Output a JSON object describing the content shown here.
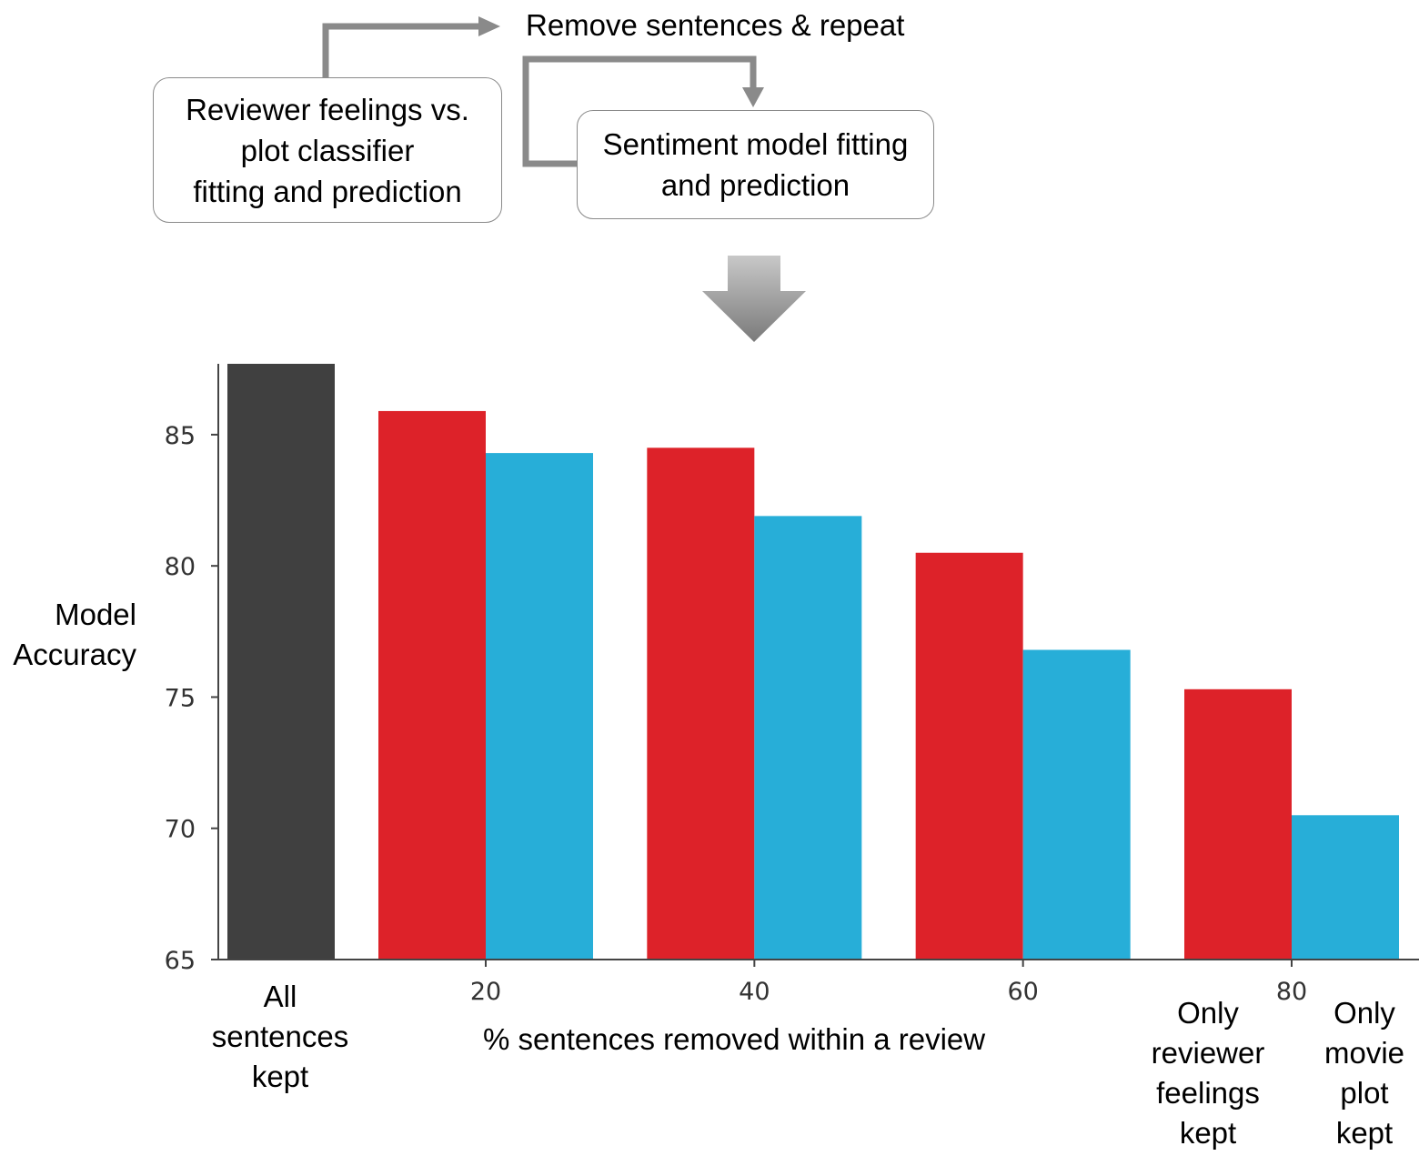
{
  "flow": {
    "classifier_box": [
      "Reviewer feelings vs.",
      "plot classifier",
      "fitting and prediction"
    ],
    "repeat_label": "Remove sentences & repeat",
    "sentiment_box": [
      "Sentiment model fitting",
      "and prediction"
    ]
  },
  "y_axis_label": [
    "Model",
    "Accuracy"
  ],
  "x_axis_label": "% sentences removed within a review",
  "category_labels": {
    "baseline": [
      "All",
      "sentences",
      "kept"
    ],
    "reviewer": [
      "Only",
      "reviewer",
      "feelings",
      "kept"
    ],
    "plot": [
      "Only",
      "movie",
      "plot",
      "kept"
    ]
  },
  "colors": {
    "baseline": "#404040",
    "reviewer": "#dd2229",
    "plot": "#27aed8",
    "arrow": "#8a8a8a"
  },
  "chart_data": {
    "type": "bar",
    "xlabel": "% sentences removed within a review",
    "ylabel": "Model Accuracy",
    "ylim": [
      65,
      87.7
    ],
    "yticks": [
      65,
      70,
      75,
      80,
      85
    ],
    "categories": [
      20,
      40,
      60,
      80
    ],
    "baseline": {
      "name": "All sentences kept",
      "value": 88
    },
    "series": [
      {
        "name": "Only reviewer feelings kept",
        "values": [
          85.9,
          84.5,
          80.5,
          75.3
        ]
      },
      {
        "name": "Only movie plot kept",
        "values": [
          84.3,
          81.9,
          76.8,
          70.5
        ]
      }
    ]
  }
}
